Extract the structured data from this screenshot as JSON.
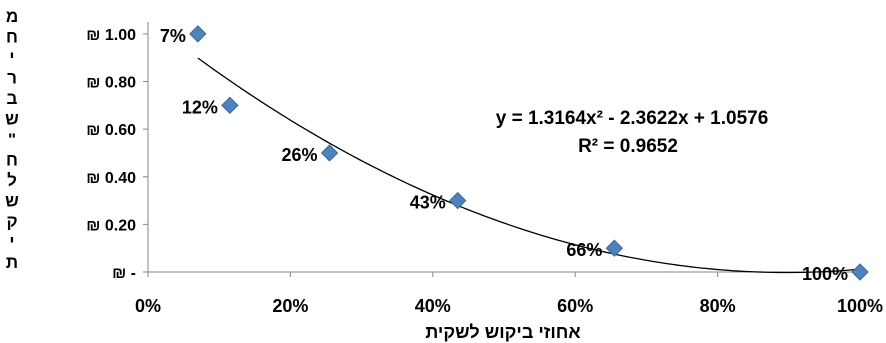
{
  "chart_data": {
    "type": "scatter",
    "xlabel": "אחוזי ביקוש לשקית",
    "ylabel": "מחיר בש\"ח לשקית",
    "ylabel_chars": [
      "מ",
      "ח",
      "י",
      "ר",
      "ב",
      "ש",
      "\"",
      "ח",
      "ל",
      "ש",
      "ק",
      "י",
      "ת"
    ],
    "xlim": [
      0,
      1
    ],
    "ylim": [
      0,
      1.05
    ],
    "x_ticks": [
      0,
      0.2,
      0.4,
      0.6,
      0.8,
      1.0
    ],
    "x_tick_labels": [
      "0%",
      "20%",
      "40%",
      "60%",
      "80%",
      "100%"
    ],
    "y_ticks": [
      0,
      0.2,
      0.4,
      0.6,
      0.8,
      1.0
    ],
    "y_tick_labels": [
      "₪ -",
      "₪ 0.20",
      "₪ 0.40",
      "₪ 0.60",
      "₪ 0.80",
      "₪ 1.00"
    ],
    "points": [
      {
        "x": 0.07,
        "y": 1.0,
        "label": "7%"
      },
      {
        "x": 0.115,
        "y": 0.7,
        "label": "12%"
      },
      {
        "x": 0.255,
        "y": 0.5,
        "label": "26%"
      },
      {
        "x": 0.435,
        "y": 0.3,
        "label": "43%"
      },
      {
        "x": 0.655,
        "y": 0.1,
        "label": "66%"
      },
      {
        "x": 1.0,
        "y": 0.0,
        "label": "100%"
      }
    ],
    "trendline": {
      "type": "polynomial",
      "coefficients": [
        1.3164,
        -2.3622,
        1.0576
      ],
      "x_range": [
        0.07,
        1.0
      ],
      "equation_text": "y = 1.3164x² - 2.3622x + 1.0576",
      "r2_text": "R² = 0.9652"
    },
    "marker_color": "#4f81bd",
    "marker_stroke": "#3c6797",
    "grid": false,
    "legend": "none"
  }
}
